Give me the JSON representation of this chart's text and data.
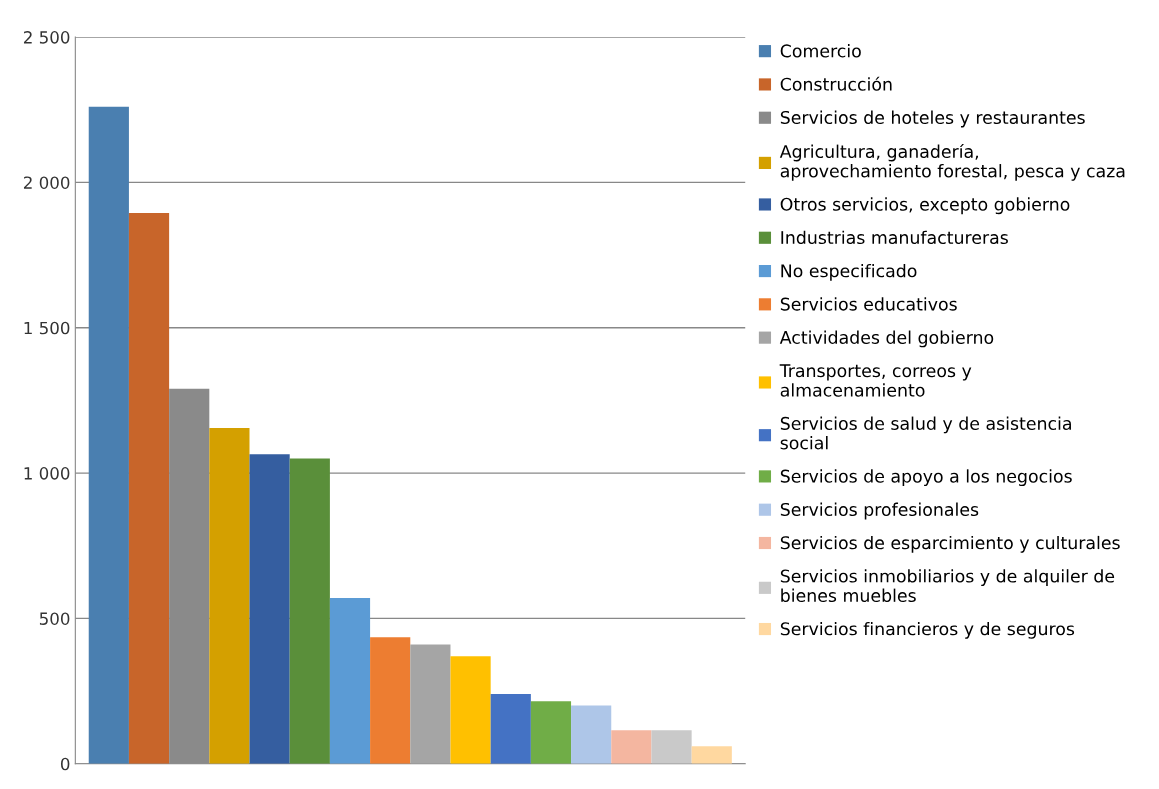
{
  "chart_data": {
    "type": "bar",
    "categories": [
      null
    ],
    "series": [
      {
        "name": "Comercio",
        "color": "#4a7fb0",
        "values": [
          2260
        ]
      },
      {
        "name": "Construcción",
        "color": "#c8652a",
        "values": [
          1895
        ]
      },
      {
        "name": "Servicios de hoteles y restaurantes",
        "color": "#8a8a8a",
        "values": [
          1290
        ]
      },
      {
        "name": "Agricultura, ganadería,\naprovechamiento forestal, pesca y caza",
        "color": "#d4a000",
        "values": [
          1155
        ]
      },
      {
        "name": "Otros servicios, excepto gobierno",
        "color": "#355ea0",
        "values": [
          1065
        ]
      },
      {
        "name": "Industrias manufactureras",
        "color": "#5a8f3a",
        "values": [
          1050
        ]
      },
      {
        "name": "No especificado",
        "color": "#5b9bd5",
        "values": [
          570
        ]
      },
      {
        "name": "Servicios educativos",
        "color": "#ed7d31",
        "values": [
          435
        ]
      },
      {
        "name": "Actividades del gobierno",
        "color": "#a5a5a5",
        "values": [
          410
        ]
      },
      {
        "name": "Transportes, correos y\nalmacenamiento",
        "color": "#ffc000",
        "values": [
          370
        ]
      },
      {
        "name": "Servicios de salud y de asistencia\nsocial",
        "color": "#4472c4",
        "values": [
          240
        ]
      },
      {
        "name": "Servicios de apoyo a los negocios",
        "color": "#70ad47",
        "values": [
          215
        ]
      },
      {
        "name": "Servicios profesionales",
        "color": "#aec6e8",
        "values": [
          200
        ]
      },
      {
        "name": "Servicios de esparcimiento y culturales",
        "color": "#f4b6a0",
        "values": [
          115
        ]
      },
      {
        "name": "Servicios inmobiliarios y de alquiler de\nbienes muebles",
        "color": "#c9c9c9",
        "values": [
          115
        ]
      },
      {
        "name": "Servicios financieros y de seguros",
        "color": "#ffd8a0",
        "values": [
          60
        ]
      }
    ],
    "ylim": [
      0,
      2500
    ],
    "yticks": [
      0,
      {
        "value": 500,
        "label": "500"
      },
      {
        "value": 1000,
        "label": "1 000"
      },
      {
        "value": 1500,
        "label": "1 500"
      },
      {
        "value": 2000,
        "label": "2 000"
      },
      {
        "value": 2500,
        "label": "2 500"
      }
    ],
    "grid": "y",
    "legend": "right"
  }
}
